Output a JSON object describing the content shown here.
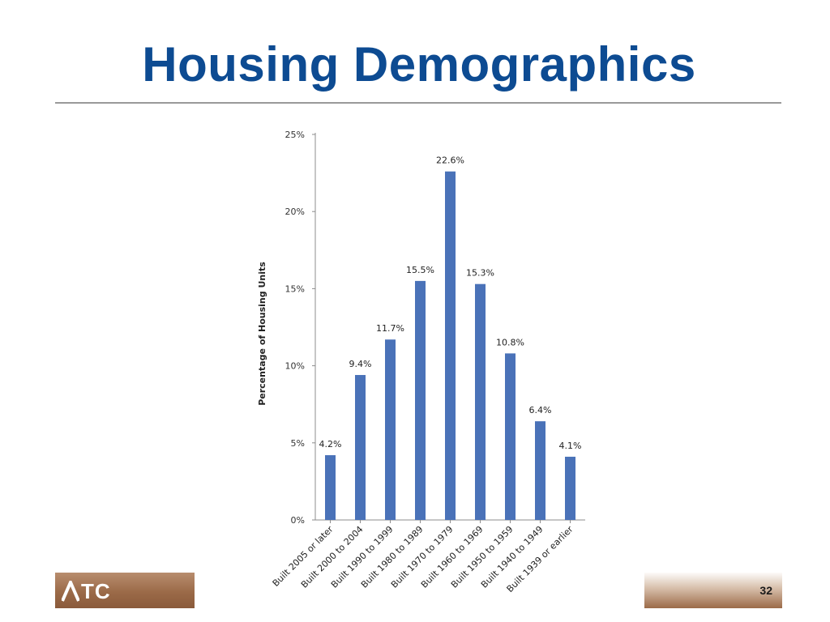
{
  "slide": {
    "title": "Housing Demographics",
    "page_number": "32",
    "logo_text": "TC"
  },
  "colors": {
    "title": "#0d4b92",
    "bar": "#4a72b8",
    "footer_brown": "#9b6a48"
  },
  "chart_data": {
    "type": "bar",
    "title": "",
    "xlabel": "",
    "ylabel": "Percentage of Housing Units",
    "ylim": [
      0,
      25
    ],
    "yticks": [
      0,
      5,
      10,
      15,
      20,
      25
    ],
    "ytick_labels": [
      "0%",
      "5%",
      "10%",
      "15%",
      "20%",
      "25%"
    ],
    "categories": [
      "Built 2005 or later",
      "Built 2000 to 2004",
      "Built 1990 to 1999",
      "Built 1980 to 1989",
      "Built 1970 to 1979",
      "Built 1960 to 1969",
      "Built 1950 to 1959",
      "Built 1940 to 1949",
      "Built 1939 or earlier"
    ],
    "values": [
      4.2,
      9.4,
      11.7,
      15.5,
      22.6,
      15.3,
      10.8,
      6.4,
      4.1
    ],
    "data_labels": [
      "4.2%",
      "9.4%",
      "11.7%",
      "15.5%",
      "22.6%",
      "15.3%",
      "10.8%",
      "6.4%",
      "4.1%"
    ],
    "grid": false,
    "legend": "none"
  }
}
